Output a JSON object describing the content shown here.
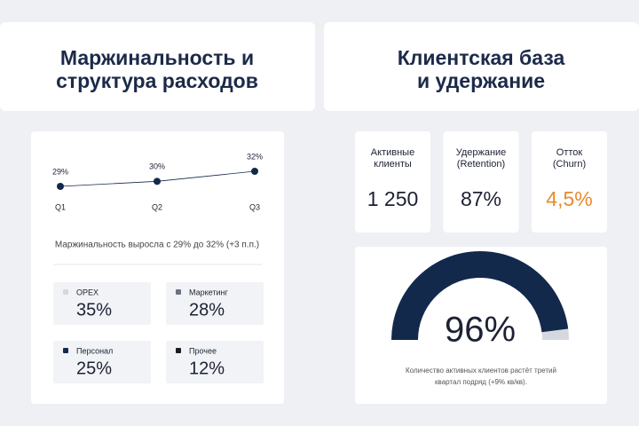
{
  "left": {
    "title": [
      "Маржинальность и",
      "структура расходов"
    ],
    "note": "Маржинальность выросла с 29% до 32% (+3 п.п.)"
  },
  "right": {
    "title": [
      "Клиентская база",
      "и удержание"
    ],
    "kpis": [
      {
        "label": [
          "Активные",
          "клиенты"
        ],
        "value": "1 250",
        "color": "#1c2233"
      },
      {
        "label": [
          "Удержание",
          "(Retention)"
        ],
        "value": "87%",
        "color": "#1c2233"
      },
      {
        "label": [
          "Отток",
          "(Churn)"
        ],
        "value": "4,5%",
        "color": "#e8892c"
      }
    ],
    "note": [
      "Количество активных клиентов растёт третий",
      "квартал подряд (+9% кв/кв)."
    ]
  },
  "chart_data": [
    {
      "type": "line",
      "categories": [
        "Q1",
        "Q2",
        "Q3"
      ],
      "values": [
        29,
        30,
        32
      ],
      "value_labels": [
        "29%",
        "30%",
        "32%"
      ],
      "color": "#13294b"
    },
    {
      "type": "tiles",
      "categories": [
        "OPEX",
        "Маркетинг",
        "Персонал",
        "Прочее"
      ],
      "values": [
        35,
        28,
        25,
        12
      ],
      "value_labels": [
        "35%",
        "28%",
        "25%",
        "12%"
      ],
      "colors": [
        "#d5d8df",
        "#6b7280",
        "#13294b",
        "#1c1c1c"
      ]
    },
    {
      "type": "gauge",
      "value": 96,
      "value_label": "96%",
      "ylim": [
        0,
        100
      ],
      "color": "#13294b",
      "track_color": "#d5d8df"
    }
  ]
}
